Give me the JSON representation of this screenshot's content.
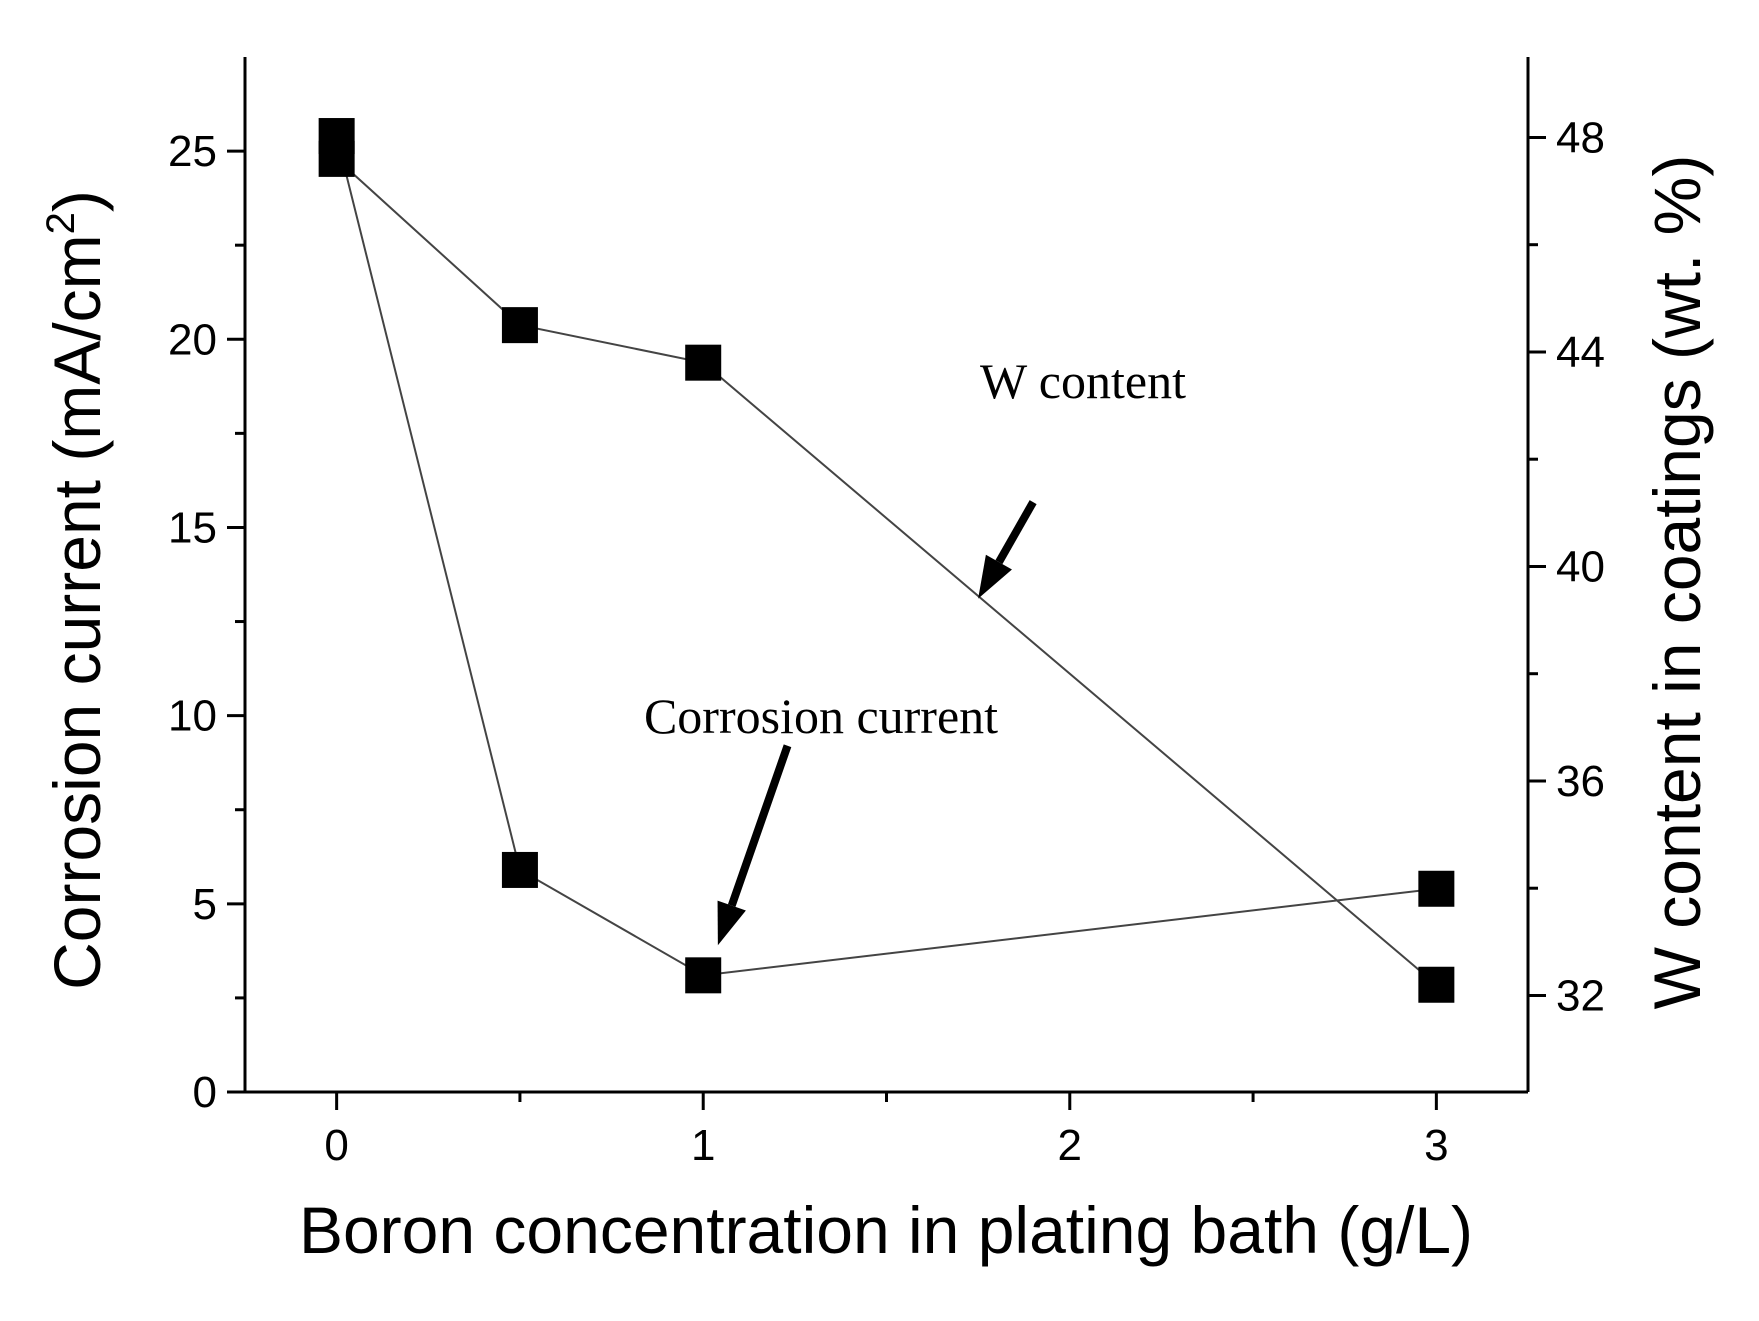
{
  "chart_data": {
    "type": "line",
    "xlabel": "Boron concentration in plating bath (g/L)",
    "ylabel_left": "Corrosion current (mA/cm2)",
    "ylabel_left_base": "Corrosion current (mA/cm",
    "ylabel_left_sup": "2",
    "ylabel_left_tail": ")",
    "ylabel_right": "W content in coatings (wt. %)",
    "xlim": [
      -0.25,
      3.25
    ],
    "ylim_left": [
      0,
      27.5
    ],
    "ylim_right": [
      30.2,
      49.5
    ],
    "x_ticks": [
      0,
      1,
      2,
      3
    ],
    "x_tick_labels": [
      "0",
      "1",
      "2",
      "3"
    ],
    "x_minor_ticks": [
      0.5,
      1.5,
      2.5
    ],
    "y_left_ticks": [
      0,
      5,
      10,
      15,
      20,
      25
    ],
    "y_left_tick_labels": [
      "0",
      "5",
      "10",
      "15",
      "20",
      "25"
    ],
    "y_left_minor_ticks": [
      2.5,
      7.5,
      12.5,
      17.5,
      22.5
    ],
    "y_right_ticks": [
      32,
      36,
      40,
      44,
      48
    ],
    "y_right_tick_labels": [
      "32",
      "36",
      "40",
      "44",
      "48"
    ],
    "y_right_minor_ticks": [
      34,
      38,
      42,
      46
    ],
    "series": [
      {
        "name": "Corrosion current",
        "axis": "left",
        "x": [
          0,
          0.5,
          1,
          3
        ],
        "y": [
          25.4,
          5.9,
          3.1,
          5.4
        ],
        "marker": "square",
        "color": "#000000"
      },
      {
        "name": "W content",
        "axis": "right",
        "x": [
          0,
          0.5,
          1,
          3
        ],
        "y": [
          47.6,
          44.5,
          43.8,
          32.2
        ],
        "marker": "square",
        "color": "#000000"
      }
    ],
    "annotations": [
      {
        "text": "W content",
        "arrow_from": [
          1.9,
          41.2
        ],
        "arrow_to": [
          1.75,
          39.4
        ]
      },
      {
        "text": "Corrosion current",
        "arrow_from": [
          1.23,
          9.2
        ],
        "arrow_to": [
          1.04,
          3.9
        ]
      }
    ]
  }
}
